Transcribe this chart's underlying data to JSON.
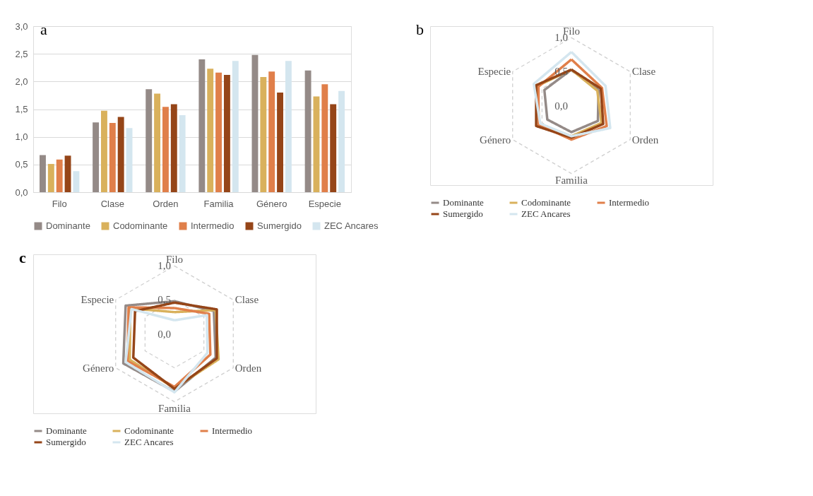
{
  "chart_data": [
    {
      "type": "bar",
      "annotations": [
        "a"
      ],
      "categories": [
        "Filo",
        "Clase",
        "Orden",
        "Familia",
        "Género",
        "Especie"
      ],
      "series": [
        {
          "name": "Dominante",
          "color": "#948a87",
          "values": [
            0.67,
            1.26,
            1.86,
            2.4,
            2.48,
            2.2
          ]
        },
        {
          "name": "Codominante",
          "color": "#d9b15c",
          "values": [
            0.51,
            1.47,
            1.78,
            2.23,
            2.08,
            1.73
          ]
        },
        {
          "name": "Intermedio",
          "color": "#e07f4a",
          "values": [
            0.59,
            1.25,
            1.54,
            2.16,
            2.18,
            1.95
          ]
        },
        {
          "name": "Sumergido",
          "color": "#954518",
          "values": [
            0.66,
            1.36,
            1.59,
            2.12,
            1.8,
            1.59
          ]
        },
        {
          "name": "ZEC Ancares",
          "color": "#d4e6ef",
          "values": [
            0.38,
            1.16,
            1.39,
            2.37,
            2.37,
            1.83
          ]
        }
      ],
      "ylim": [
        0,
        3
      ],
      "yticks": [
        {
          "value": 0,
          "label": "0,0"
        },
        {
          "value": 0.5,
          "label": "0,5"
        },
        {
          "value": 1,
          "label": "1,0"
        },
        {
          "value": 1.5,
          "label": "1,5"
        },
        {
          "value": 2,
          "label": "2,0"
        },
        {
          "value": 2.5,
          "label": "2,5"
        },
        {
          "value": 3,
          "label": "3,0"
        }
      ],
      "grid": "y",
      "legend": "bottom"
    },
    {
      "type": "radar",
      "annotations": [
        "b"
      ],
      "categories": [
        "Filo",
        "Clase",
        "Orden",
        "Familia",
        "Género",
        "Especie"
      ],
      "series": [
        {
          "name": "Dominante",
          "color": "#948a87",
          "values": [
            0.53,
            0.46,
            0.45,
            0.39,
            0.41,
            0.46
          ]
        },
        {
          "name": "Codominante",
          "color": "#d9b15c",
          "values": [
            0.53,
            0.44,
            0.51,
            0.45,
            0.55,
            0.58
          ]
        },
        {
          "name": "Intermedio",
          "color": "#e07f4a",
          "values": [
            0.68,
            0.52,
            0.6,
            0.5,
            0.56,
            0.56
          ]
        },
        {
          "name": "Sumergido",
          "color": "#954518",
          "values": [
            0.53,
            0.5,
            0.54,
            0.47,
            0.6,
            0.6
          ]
        },
        {
          "name": "ZEC Ancares",
          "color": "#d4e6ef",
          "values": [
            0.79,
            0.58,
            0.66,
            0.45,
            0.53,
            0.64
          ]
        }
      ],
      "ylim": [
        0,
        1
      ],
      "yticks": [
        {
          "value": 0,
          "label": "0,0"
        },
        {
          "value": 0.5,
          "label": "0,5"
        },
        {
          "value": 1,
          "label": "1,0"
        }
      ],
      "grid": true,
      "legend": "bottom",
      "line_style": "solid"
    },
    {
      "type": "radar",
      "annotations": [
        "c"
      ],
      "categories": [
        "Filo",
        "Clase",
        "Orden",
        "Familia",
        "Género",
        "Especie"
      ],
      "series": [
        {
          "name": "Dominante",
          "color": "#948a87",
          "values": [
            0.48,
            0.67,
            0.7,
            0.85,
            0.87,
            0.83
          ]
        },
        {
          "name": "Codominante",
          "color": "#d9b15c",
          "values": [
            0.32,
            0.7,
            0.75,
            0.8,
            0.76,
            0.75
          ]
        },
        {
          "name": "Intermedio",
          "color": "#e07f4a",
          "values": [
            0.38,
            0.59,
            0.61,
            0.78,
            0.8,
            0.78
          ]
        },
        {
          "name": "Sumergido",
          "color": "#954518",
          "values": [
            0.46,
            0.72,
            0.72,
            0.81,
            0.7,
            0.67
          ]
        },
        {
          "name": "ZEC Ancares",
          "color": "#d4e6ef",
          "values": [
            0.2,
            0.55,
            0.56,
            0.86,
            0.83,
            0.73
          ]
        }
      ],
      "ylim": [
        0,
        1
      ],
      "yticks": [
        {
          "value": 0,
          "label": "0,0"
        },
        {
          "value": 0.5,
          "label": "0,5"
        },
        {
          "value": 1,
          "label": "1,0"
        }
      ],
      "grid": true,
      "legend": "bottom",
      "line_style": "solid"
    }
  ]
}
